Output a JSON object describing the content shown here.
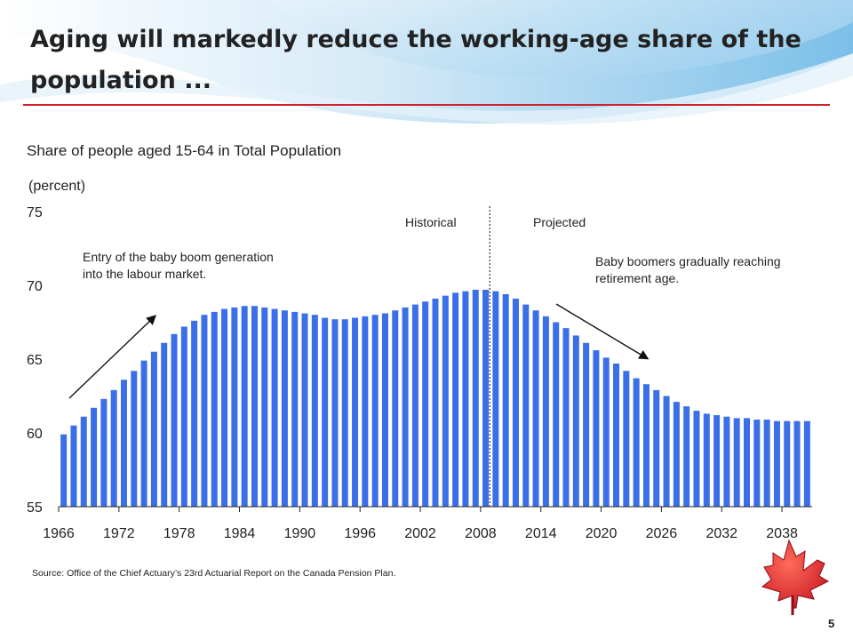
{
  "slide": {
    "title_line1": "Aging will markedly reduce the working-age share of the",
    "title_line2": "population ...",
    "source": "Source: Office of the Chief Actuary’s 23rd Actuarial Report on the Canada Pension Plan.",
    "page_number": "5",
    "accent_color": "#d0202a"
  },
  "chart_data": {
    "type": "bar",
    "title": "Share of people aged 15-64 in Total Population",
    "ylabel": "(percent)",
    "ylim": [
      55,
      75
    ],
    "y_ticks": [
      "55",
      "60",
      "65",
      "70",
      "75"
    ],
    "x_tick_labels": [
      "1966",
      "1972",
      "1978",
      "1984",
      "1990",
      "1996",
      "2002",
      "2008",
      "2014",
      "2020",
      "2026",
      "2032",
      "2038"
    ],
    "bar_color": "#3b6fe8",
    "divider_year": 2009,
    "region_labels": {
      "left": "Historical",
      "right": "Projected"
    },
    "annotations": [
      {
        "text_lines": [
          "Entry of the baby boom generation",
          "into the labour market."
        ]
      },
      {
        "text_lines": [
          "Baby boomers gradually reaching",
          "retirement age."
        ]
      }
    ],
    "years": [
      1966,
      1967,
      1968,
      1969,
      1970,
      1971,
      1972,
      1973,
      1974,
      1975,
      1976,
      1977,
      1978,
      1979,
      1980,
      1981,
      1982,
      1983,
      1984,
      1985,
      1986,
      1987,
      1988,
      1989,
      1990,
      1991,
      1992,
      1993,
      1994,
      1995,
      1996,
      1997,
      1998,
      1999,
      2000,
      2001,
      2002,
      2003,
      2004,
      2005,
      2006,
      2007,
      2008,
      2009,
      2010,
      2011,
      2012,
      2013,
      2014,
      2015,
      2016,
      2017,
      2018,
      2019,
      2020,
      2021,
      2022,
      2023,
      2024,
      2025,
      2026,
      2027,
      2028,
      2029,
      2030,
      2031,
      2032,
      2033,
      2034,
      2035,
      2036,
      2037,
      2038,
      2039,
      2040
    ],
    "values": [
      59.9,
      60.5,
      61.1,
      61.7,
      62.3,
      62.9,
      63.6,
      64.2,
      64.9,
      65.5,
      66.1,
      66.7,
      67.2,
      67.6,
      68.0,
      68.2,
      68.4,
      68.5,
      68.6,
      68.6,
      68.5,
      68.4,
      68.3,
      68.2,
      68.1,
      68.0,
      67.8,
      67.7,
      67.7,
      67.8,
      67.9,
      68.0,
      68.1,
      68.3,
      68.5,
      68.7,
      68.9,
      69.1,
      69.3,
      69.5,
      69.6,
      69.7,
      69.7,
      69.6,
      69.4,
      69.1,
      68.7,
      68.3,
      67.9,
      67.5,
      67.1,
      66.6,
      66.1,
      65.6,
      65.1,
      64.7,
      64.2,
      63.7,
      63.3,
      62.9,
      62.5,
      62.1,
      61.8,
      61.5,
      61.3,
      61.2,
      61.1,
      61.0,
      61.0,
      60.9,
      60.9,
      60.8,
      60.8,
      60.8,
      60.8
    ]
  }
}
